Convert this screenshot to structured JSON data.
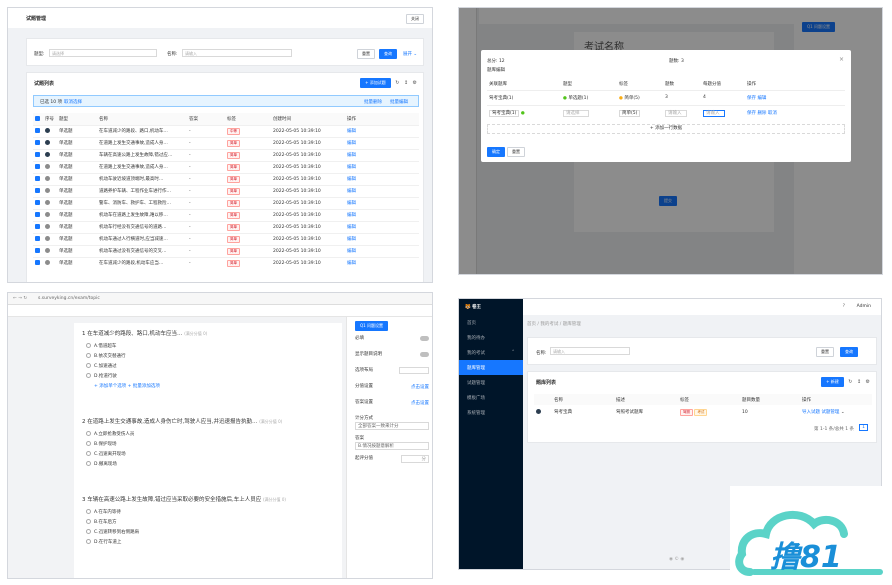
{
  "p1": {
    "title": "试题管理",
    "close": "关闭",
    "filters": {
      "type_label": "题型:",
      "type_placeholder": "请选择",
      "name_label": "名称:",
      "name_placeholder": "请输入",
      "reset": "重置",
      "search": "查询",
      "expand": "展开"
    },
    "list_title": "试题列表",
    "add": "+ 添加试题",
    "selection": {
      "text": "已选 10 项",
      "clear": "取消选择",
      "bulk_delete": "批量删除",
      "bulk_edit": "批量编辑"
    },
    "columns": [
      "序号",
      "题型",
      "名称",
      "答案",
      "标签",
      "创建时间",
      "操作"
    ],
    "rows": [
      {
        "type": "单选题",
        "name": "在车道减少的路段、路口,机动车…",
        "answer": "-",
        "tag": "中等",
        "time": "2022-05-05 10:39:10",
        "op": "编辑",
        "dot": "dark"
      },
      {
        "type": "单选题",
        "name": "在道路上发生交通事故,造成人身…",
        "answer": "-",
        "tag": "简单",
        "time": "2022-05-05 10:39:10",
        "op": "编辑",
        "dot": "dark"
      },
      {
        "type": "单选题",
        "name": "车辆在高速公路上发生故障,错过应…",
        "answer": "-",
        "tag": "简单",
        "time": "2022-05-05 10:39:10",
        "op": "编辑",
        "dot": "dark"
      },
      {
        "type": "单选题",
        "name": "在道路上发生交通事故,造成人身…",
        "answer": "-",
        "tag": "简单",
        "time": "2022-05-05 10:39:10",
        "op": "编辑",
        "dot": "grey"
      },
      {
        "type": "单选题",
        "name": "机动车驶近坡道顶端时,最高时…",
        "answer": "-",
        "tag": "简单",
        "time": "2022-05-05 10:39:10",
        "op": "编辑",
        "dot": "grey"
      },
      {
        "type": "单选题",
        "name": "道路养护车辆、工程作业车进行作…",
        "answer": "-",
        "tag": "简单",
        "time": "2022-05-05 10:39:10",
        "op": "编辑",
        "dot": "grey"
      },
      {
        "type": "单选题",
        "name": "警车、消防车、救护车、工程救险…",
        "answer": "-",
        "tag": "简单",
        "time": "2022-05-05 10:39:10",
        "op": "编辑",
        "dot": "grey"
      },
      {
        "type": "单选题",
        "name": "机动车在道路上发生故障,难以移…",
        "answer": "-",
        "tag": "简单",
        "time": "2022-05-05 10:39:10",
        "op": "编辑",
        "dot": "grey"
      },
      {
        "type": "单选题",
        "name": "机动车行经没有交通信号的道路…",
        "answer": "-",
        "tag": "简单",
        "time": "2022-05-05 10:39:10",
        "op": "编辑",
        "dot": "grey"
      },
      {
        "type": "单选题",
        "name": "机动车通过人行横道时,应当减速…",
        "answer": "-",
        "tag": "简单",
        "time": "2022-05-05 10:39:10",
        "op": "编辑",
        "dot": "grey"
      },
      {
        "type": "单选题",
        "name": "机动车通过没有交通信号的交叉…",
        "answer": "-",
        "tag": "简单",
        "time": "2022-05-05 10:39:10",
        "op": "编辑",
        "dot": "grey"
      },
      {
        "type": "单选题",
        "name": "在车道减少的路段,机动车应当…",
        "answer": "-",
        "tag": "简单",
        "time": "2022-05-05 10:39:10",
        "op": "编辑",
        "dot": "grey"
      }
    ]
  },
  "p2": {
    "bg_title": "考试名称",
    "bg_submit": "提交",
    "bg_right_title": "Q1 问题设置",
    "modal": {
      "total": "总分: 12",
      "count": "题数: 3",
      "section": "题库编辑",
      "columns": [
        "关联题库",
        "题型",
        "标签",
        "题数",
        "每题分值",
        "操作"
      ],
      "rows": [
        {
          "bank": "驾考宝典(1)",
          "type": "单选题(1)",
          "tag": "简单(5)",
          "count": "3",
          "score": "4",
          "ops": [
            "保存",
            "编辑"
          ]
        },
        {
          "bank": "驾考宝典(1)",
          "type": "请选择",
          "tag": "简单(5)",
          "count": "请输入",
          "score": "请输入",
          "ops": [
            "保存",
            "删除",
            "取消"
          ]
        }
      ],
      "add_row": "+ 添加一行数据",
      "ok": "确定",
      "reset": "重置"
    }
  },
  "p3": {
    "url": "s.surveyking.cn/exam/topic",
    "right_title": "Q1 问题设置",
    "settings": [
      {
        "label": "必填",
        "kind": "toggle"
      },
      {
        "label": "显示题目说明",
        "kind": "toggle"
      },
      {
        "label": "选项布局",
        "kind": "select"
      },
      {
        "label": "分值设置",
        "kind": "link",
        "value": "点击设置"
      },
      {
        "label": "答案设置",
        "kind": "link",
        "value": "点击设置"
      },
      {
        "label": "计分方式",
        "kind": "text",
        "value": "全部答案一致来计分"
      },
      {
        "label": "答案",
        "kind": "text",
        "value": "B.情况按题意解析"
      },
      {
        "label": "起评分值",
        "kind": "input",
        "value": "分"
      }
    ],
    "questions": [
      {
        "num": "1",
        "title": "在车道减少的路段、路口,机动车应当…",
        "options": [
          "A.借道超车",
          "B.依次交替通行",
          "C.加速通过",
          "D.抢道行驶"
        ],
        "links": [
          "+ 添加单个选项",
          "+ 批量添加选项"
        ],
        "hint": "(满分分值 0)"
      },
      {
        "num": "2",
        "title": "在道路上发生交通事故,造成人身伤亡时,驾驶人应当,并迅速报告执勤…",
        "options": [
          "A.立即抢救受伤人员",
          "B.保护现场",
          "C.迅速离开现场",
          "D.撤离现场"
        ],
        "hint": "(满分分值 0)"
      },
      {
        "num": "3",
        "title": "车辆在高速公路上发生故障,错过应当采取必要的安全措施后,车上人员应",
        "options": [
          "A.在车内等待",
          "B.在车后方",
          "C.迅速转移到右侧路肩",
          "D.在行车道上"
        ],
        "hint": "(满分分值 0)"
      }
    ]
  },
  "p4": {
    "brand": "卷王",
    "user": "Admin",
    "nav": [
      {
        "label": "首页"
      },
      {
        "label": "我的待办"
      },
      {
        "label": "我的考试",
        "expanded": true
      },
      {
        "label": "题库管理",
        "active": true
      },
      {
        "label": "试题管理"
      },
      {
        "label": "模板广场"
      },
      {
        "label": "系统管理"
      }
    ],
    "breadcrumb": "首页 / 我的考试 / 题库管理",
    "search_label": "名称:",
    "search_placeholder": "请输入",
    "reset": "重置",
    "query": "查询",
    "list_title": "题库列表",
    "new": "+ 新建",
    "columns": [
      "名称",
      "描述",
      "标签",
      "题目数量",
      "操作"
    ],
    "row": {
      "name": "驾考宝典",
      "desc": "驾照考试题库",
      "tags": [
        "驾照",
        "考试"
      ],
      "count": "10",
      "ops": [
        "导入试题",
        "试题管理"
      ]
    },
    "pager": "第 1-1 条/总共 1 条",
    "page": "1"
  },
  "watermark": "撸81"
}
